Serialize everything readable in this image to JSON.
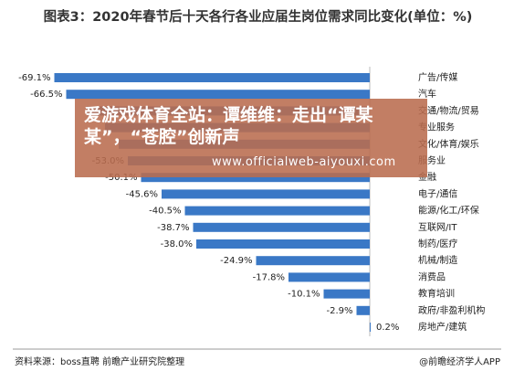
{
  "chart_data": {
    "type": "barh",
    "title": "图表3：2020年春节后十天各行各业应届生岗位需求同比变化(单位：%)",
    "categories": [
      "广告/传媒",
      "汽车",
      "交通/物流/贸易",
      "专业服务",
      "文化/体育/娱乐",
      "服务业",
      "金融",
      "电子/通信",
      "能源/化工/环保",
      "互联网/IT",
      "制药/医疗",
      "机械/制造",
      "消费品",
      "教育培训",
      "政府/非盈利机构",
      "房地产/建筑"
    ],
    "values": [
      -69.1,
      -66.5,
      -62,
      -58,
      -55,
      -53.0,
      -50.1,
      -45.6,
      -40.5,
      -38.7,
      -38.0,
      -24.9,
      -17.8,
      -10.1,
      -2.9,
      0.2
    ],
    "value_labels": [
      "-69.1%",
      "-66.5%",
      null,
      null,
      null,
      "-53.0%",
      "-50.1%",
      "-45.6%",
      "-40.5%",
      "-38.7%",
      "-38.0%",
      "-24.9%",
      "-17.8%",
      "-10.1%",
      "-2.9%",
      "0.2%"
    ],
    "color": "#3a78c6",
    "xlim": [
      -72,
      8
    ],
    "source": "资料来源：boss直聘 前瞻产业研究院整理",
    "credit": "@前瞻经济学人APP"
  },
  "overlay": {
    "headline": "爱游戏体育全站：谭维维：走出“谭某某”，“苍腔”创新声",
    "url": "www.officialweb-aiyouxi.com"
  }
}
